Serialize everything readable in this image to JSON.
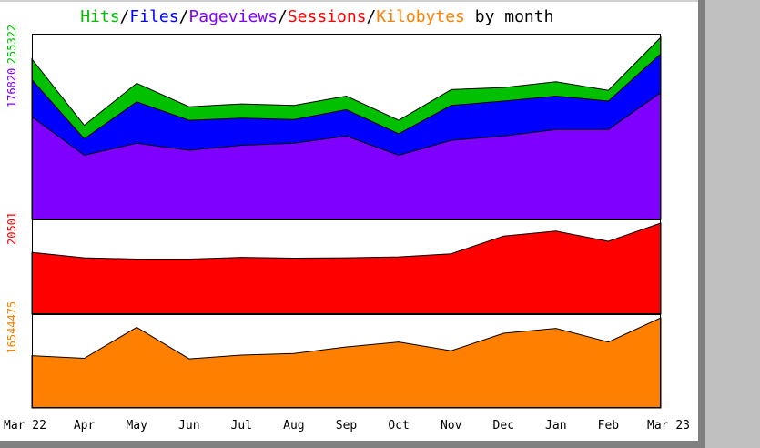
{
  "chart_data": {
    "type": "area",
    "title_parts": [
      {
        "text": "Hits",
        "color": "#00c000"
      },
      {
        "text": "/",
        "color": "#000000"
      },
      {
        "text": "Files",
        "color": "#0000ff"
      },
      {
        "text": "/",
        "color": "#000000"
      },
      {
        "text": "Pageviews",
        "color": "#8000ff"
      },
      {
        "text": "/",
        "color": "#000000"
      },
      {
        "text": "Sessions",
        "color": "#ff0000"
      },
      {
        "text": "/",
        "color": "#000000"
      },
      {
        "text": "Kilobytes",
        "color": "#ff8000"
      },
      {
        "text": " by month",
        "color": "#000000"
      }
    ],
    "categories": [
      "Mar 22",
      "Apr",
      "May",
      "Jun",
      "Jul",
      "Aug",
      "Sep",
      "Oct",
      "Nov",
      "Dec",
      "Jan",
      "Feb",
      "Mar 23"
    ],
    "panels": [
      {
        "id": "traffic",
        "ylim": [
          0,
          255322
        ],
        "y_tick_labels": [
          {
            "text": "255322",
            "value": 255322,
            "color": "#00c000"
          },
          {
            "text": "176820",
            "value": 176820,
            "color": "#8000ff"
          }
        ],
        "series": [
          {
            "name": "Hits",
            "color": "#00c000",
            "values": [
              225000,
              132000,
              191000,
              158000,
              162000,
              160000,
              173000,
              139000,
              182000,
              185000,
              193000,
              181000,
              255322
            ]
          },
          {
            "name": "Files",
            "color": "#0000ff",
            "values": [
              196000,
              113000,
              165000,
              139000,
              142000,
              140000,
              154000,
              120000,
              160000,
              166000,
              173000,
              166000,
              232000
            ]
          },
          {
            "name": "Pageviews",
            "color": "#8000ff",
            "values": [
              144000,
              90000,
              107000,
              97000,
              104000,
              107000,
              117000,
              90000,
              111000,
              117000,
              126000,
              126000,
              178000
            ]
          }
        ]
      },
      {
        "id": "sessions",
        "ylim": [
          0,
          20501
        ],
        "y_tick_labels": [
          {
            "text": "20501",
            "value": 20501,
            "color": "#ff0000"
          }
        ],
        "series": [
          {
            "name": "Sessions",
            "color": "#ff0000",
            "values": [
              13900,
              12700,
              12400,
              12400,
              12800,
              12600,
              12700,
              12900,
              13600,
              17600,
              18700,
              16400,
              20501
            ]
          }
        ]
      },
      {
        "id": "kilobytes",
        "ylim": [
          0,
          16544475
        ],
        "y_tick_labels": [
          {
            "text": "16544475",
            "value": 16544475,
            "color": "#ff8000"
          }
        ],
        "series": [
          {
            "name": "Kilobytes",
            "color": "#ff8000",
            "values": [
              9600000,
              9100000,
              14800000,
              9000000,
              9700000,
              10000000,
              11200000,
              12100000,
              10500000,
              13700000,
              14600000,
              12100000,
              16544475
            ]
          }
        ]
      }
    ]
  }
}
